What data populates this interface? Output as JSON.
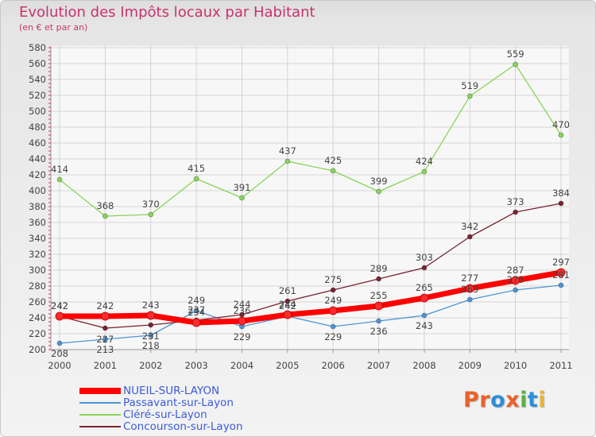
{
  "header": {
    "title": "Evolution des Impôts locaux par Habitant",
    "subtitle": "(en € et par an)"
  },
  "logo": {
    "letters": [
      "P",
      "r",
      "o",
      "x",
      "i",
      "t",
      "i"
    ],
    "colors": [
      "#e8622a",
      "#e8622a",
      "#2f8fd6",
      "#e8622a",
      "#5bb043",
      "#2f8fd6",
      "#e7b43a"
    ]
  },
  "chart_data": {
    "type": "line",
    "x": [
      "2000",
      "2001",
      "2002",
      "2003",
      "2004",
      "2005",
      "2006",
      "2007",
      "2008",
      "2009",
      "2010",
      "2011"
    ],
    "ylim": [
      200,
      580
    ],
    "yticks": [
      200,
      220,
      240,
      260,
      280,
      300,
      320,
      340,
      360,
      380,
      400,
      420,
      440,
      460,
      480,
      500,
      520,
      540,
      560,
      580
    ],
    "grid": true,
    "series": [
      {
        "name": "NUEIL-SUR-LAYON",
        "color": "#ff0000",
        "values": [
          242,
          242,
          243,
          234,
          236,
          244,
          249,
          255,
          265,
          277,
          287,
          297
        ]
      },
      {
        "name": "Passavant-sur-Layon",
        "color": "#4d94d6",
        "values": [
          208,
          213,
          218,
          249,
          229,
          242,
          229,
          236,
          243,
          263,
          275,
          281
        ]
      },
      {
        "name": "Cléré-sur-Layon",
        "color": "#88d55a",
        "values": [
          414,
          368,
          370,
          415,
          391,
          437,
          425,
          399,
          424,
          519,
          559,
          470
        ]
      },
      {
        "name": "Concourson-sur-Layon",
        "color": "#7a2230",
        "values": [
          242,
          227,
          231,
          237,
          244,
          261,
          275,
          289,
          303,
          342,
          373,
          384
        ]
      }
    ]
  }
}
